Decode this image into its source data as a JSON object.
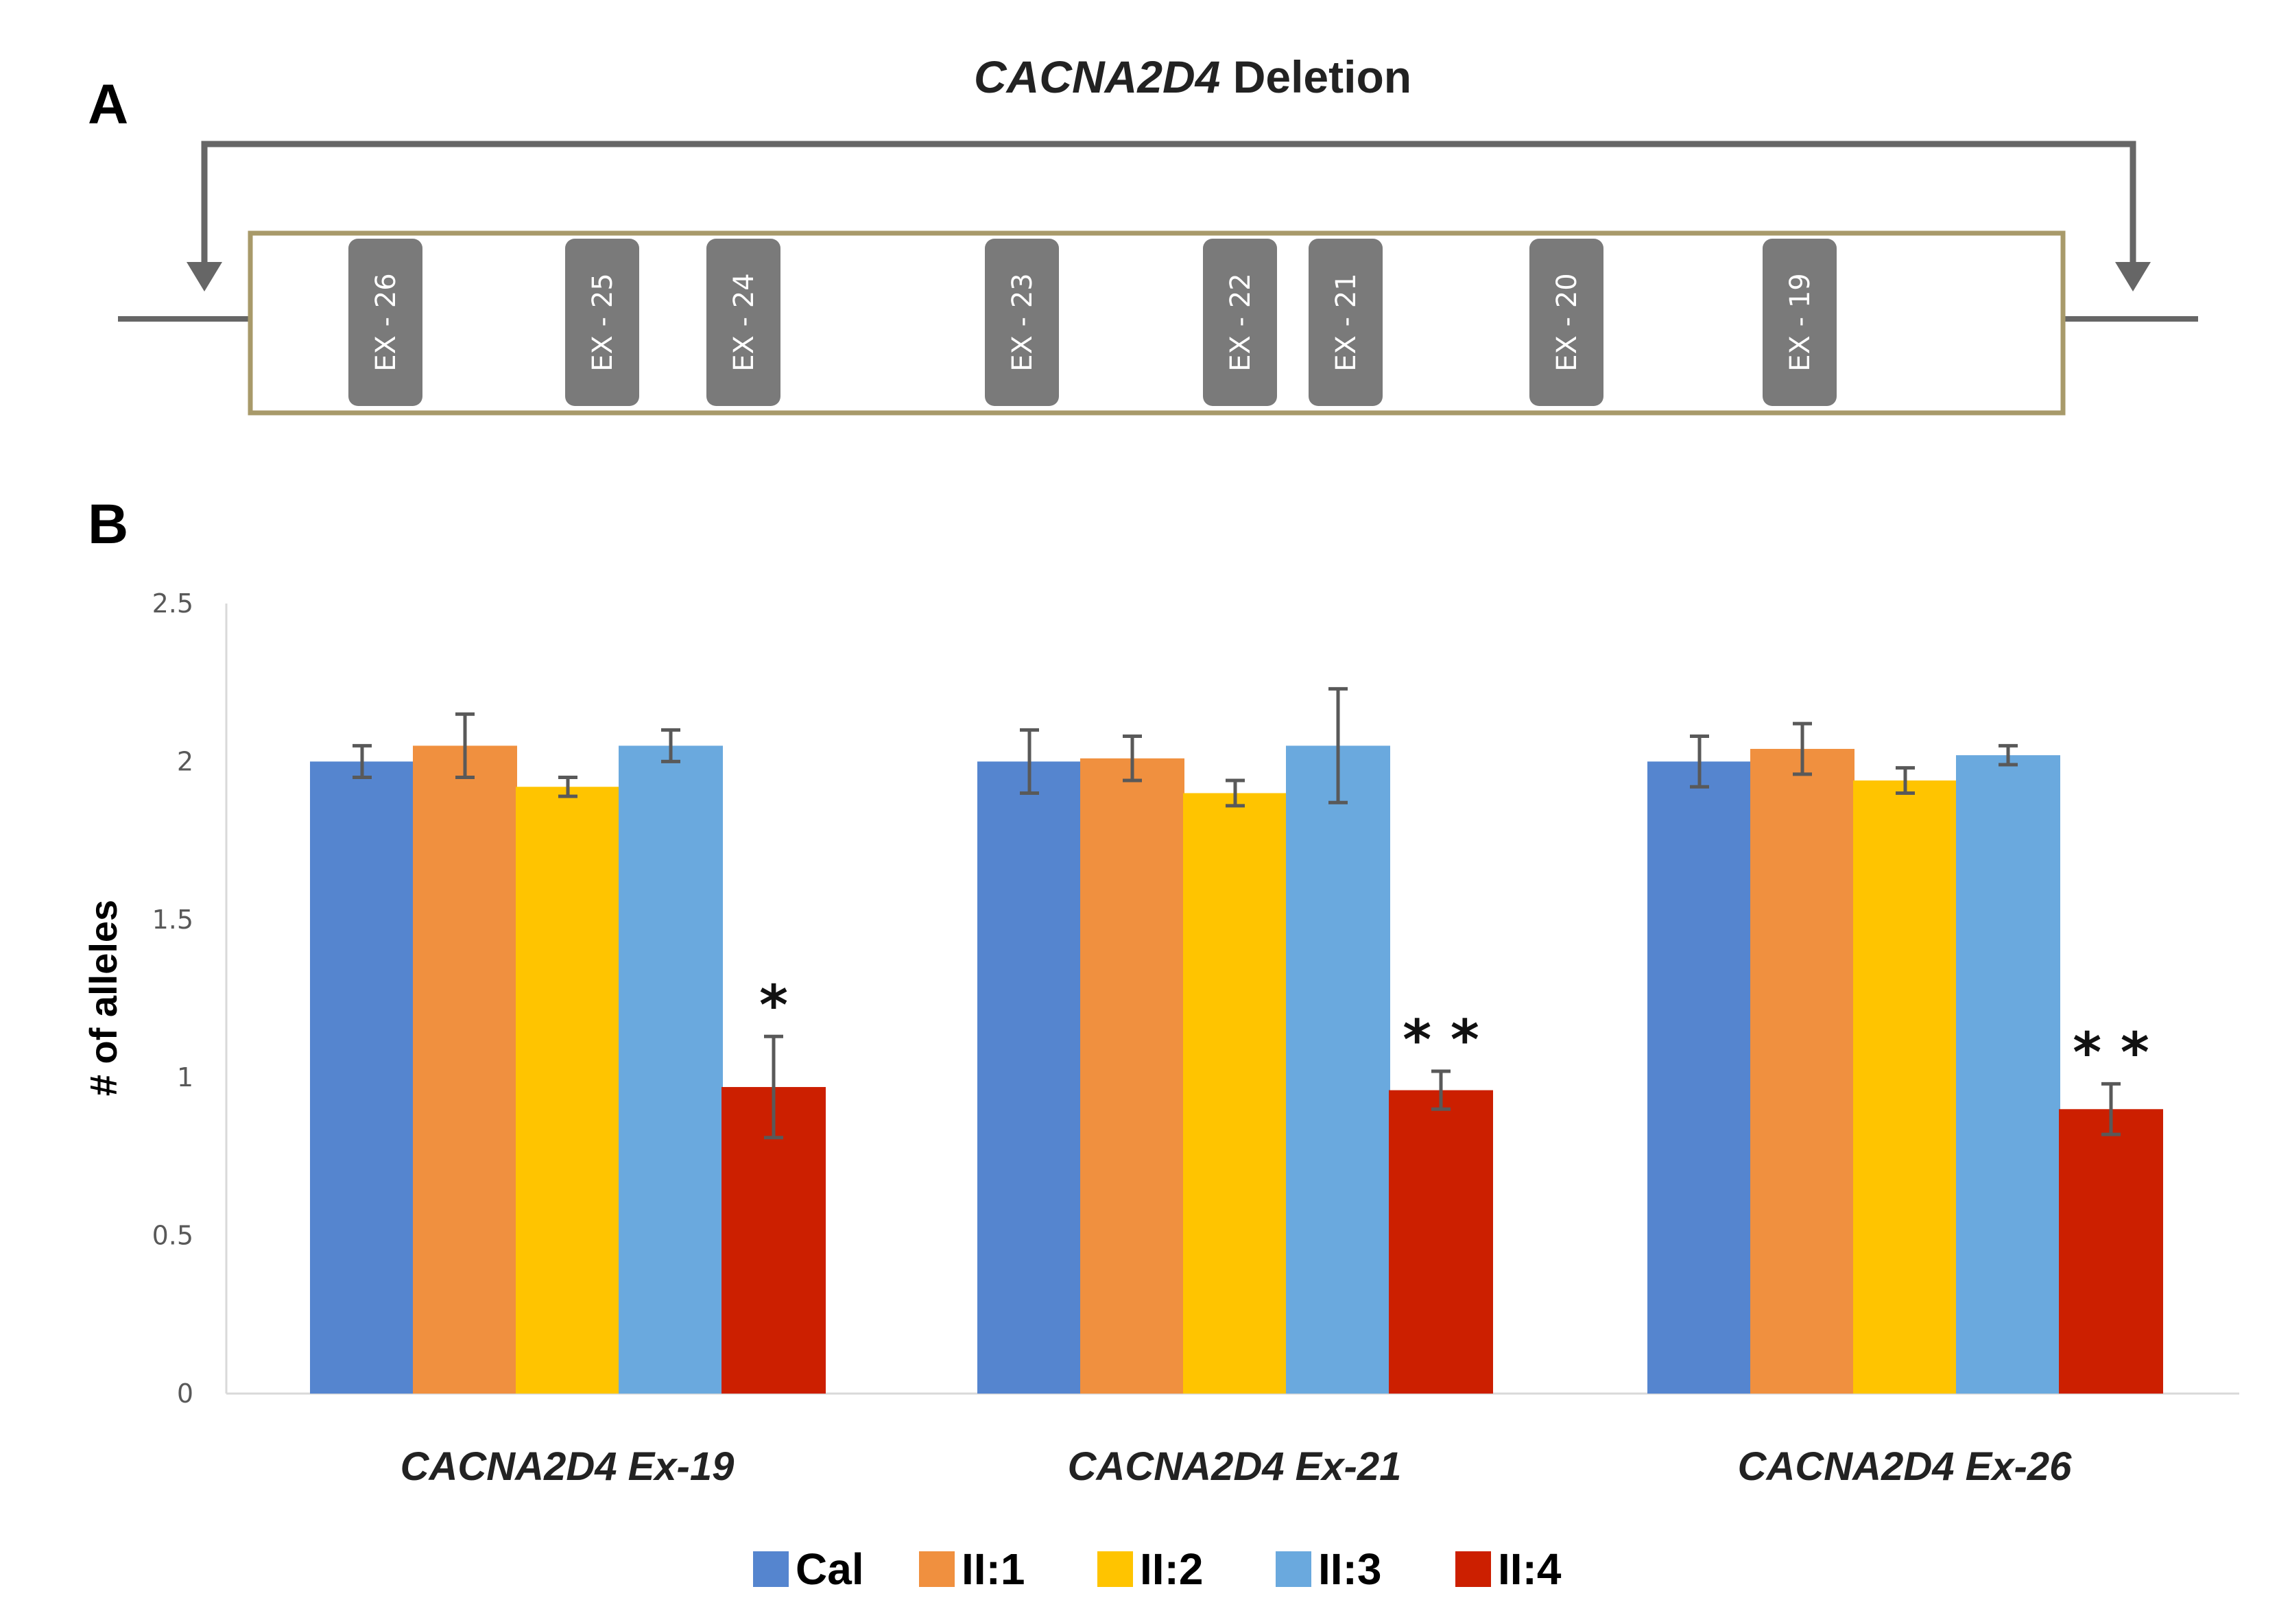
{
  "panel_a": {
    "label": "A",
    "title_gene": "CACNA2D4",
    "title_suffix": " Deletion",
    "exons": [
      "EX - 26",
      "EX - 25",
      "EX - 24",
      "EX - 23",
      "EX - 22",
      "EX - 21",
      "EX - 20",
      "EX - 19"
    ]
  },
  "panel_b": {
    "label": "B"
  },
  "colors": {
    "cal": "#5585cf",
    "ii1": "#f0903f",
    "ii2": "#ffc400",
    "ii3": "#6aa9de",
    "ii4": "#cc1f00",
    "exon_box": "#7a7a7a",
    "region_outline": "#a89a6a",
    "arrow": "#666666"
  },
  "chart_data": {
    "type": "bar",
    "title": "",
    "xlabel": "",
    "ylabel": "# of alleles",
    "ylim": [
      0,
      2.5
    ],
    "yticks": [
      "0",
      "0.5",
      "1",
      "1.5",
      "2",
      "2.5"
    ],
    "grid": false,
    "legend_position": "bottom",
    "categories": [
      "CACNA2D4 Ex-19",
      "CACNA2D4 Ex-21",
      "CACNA2D4 Ex-26"
    ],
    "series": [
      {
        "name": "Cal",
        "color_key": "cal",
        "values": [
          2.0,
          2.0,
          2.0
        ],
        "errors": [
          0.05,
          0.1,
          0.08
        ]
      },
      {
        "name": "II:1",
        "color_key": "ii1",
        "values": [
          2.05,
          2.01,
          2.04
        ],
        "errors": [
          0.1,
          0.07,
          0.08
        ]
      },
      {
        "name": "II:2",
        "color_key": "ii2",
        "values": [
          1.92,
          1.9,
          1.94
        ],
        "errors": [
          0.03,
          0.04,
          0.04
        ]
      },
      {
        "name": "II:3",
        "color_key": "ii3",
        "values": [
          2.05,
          2.05,
          2.02
        ],
        "errors": [
          0.05,
          0.18,
          0.03
        ]
      },
      {
        "name": "II:4",
        "color_key": "ii4",
        "values": [
          0.97,
          0.96,
          0.9
        ],
        "errors": [
          0.16,
          0.06,
          0.08
        ]
      }
    ],
    "annotations": [
      "*",
      "* *",
      "* *"
    ]
  }
}
